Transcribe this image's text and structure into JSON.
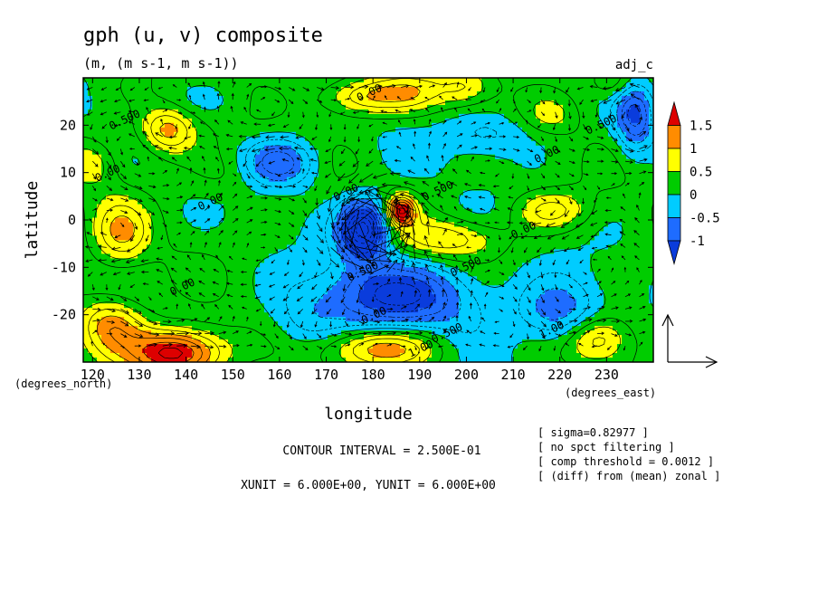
{
  "title": "gph (u, v) composite",
  "subtitle": "(m, (m s-1, m s-1))",
  "tag": "adj_c",
  "chart_data": {
    "type": "heatmap",
    "title": "gph (u, v) composite",
    "units": "(m, (m s-1, m s-1))",
    "xlabel": "longitude",
    "ylabel": "latitude",
    "x_unit_label": "(degrees_east)",
    "y_unit_label": "(degrees_north)",
    "xlim": [
      118,
      240
    ],
    "ylim": [
      -30,
      30
    ],
    "x_ticks": [
      120,
      130,
      140,
      150,
      160,
      170,
      180,
      190,
      200,
      210,
      220,
      230
    ],
    "y_ticks": [
      20,
      10,
      0,
      -10,
      -20
    ],
    "colorbar": {
      "levels": [
        "1.5",
        "1",
        "0.5",
        "0",
        "-0.5",
        "-1"
      ],
      "colors": [
        "#dd0000",
        "#ff8c00",
        "#ffff00",
        "#00cc00",
        "#00ccff",
        "#1e6cff",
        "#0a3cdc"
      ]
    },
    "contour_labels": [
      {
        "text": "0.500",
        "lon": 124,
        "lat": 19
      },
      {
        "text": "0.00",
        "lon": 121,
        "lat": 8
      },
      {
        "text": "0.00",
        "lon": 143,
        "lat": 2
      },
      {
        "text": "0.00",
        "lon": 137,
        "lat": -16
      },
      {
        "text": "0.00",
        "lon": 177,
        "lat": 25
      },
      {
        "text": "0.00",
        "lon": 172,
        "lat": 4
      },
      {
        "text": "0.500",
        "lon": 191,
        "lat": 4
      },
      {
        "text": "0.00",
        "lon": 210,
        "lat": -4
      },
      {
        "text": "0.500",
        "lon": 197,
        "lat": -12
      },
      {
        "text": "0.500",
        "lon": 175,
        "lat": -13
      },
      {
        "text": "0.00",
        "lon": 178,
        "lat": -22
      },
      {
        "text": "0.500",
        "lon": 193,
        "lat": -26
      },
      {
        "text": "1.00",
        "lon": 188,
        "lat": -29
      },
      {
        "text": "0.00",
        "lon": 215,
        "lat": 12
      },
      {
        "text": "0.500",
        "lon": 226,
        "lat": 18
      },
      {
        "text": "1.00",
        "lon": 216,
        "lat": -25
      }
    ],
    "contour_interval": "CONTOUR INTERVAL = 2.500E-01",
    "vector_units": "XUNIT = 6.000E+00, YUNIT = 6.000E+00",
    "notes": [
      "[ sigma=0.82977 ]",
      "[ no spct filtering ]",
      "[ comp threshold = 0.0012 ]",
      "[ (diff) from (mean) zonal ]"
    ]
  }
}
